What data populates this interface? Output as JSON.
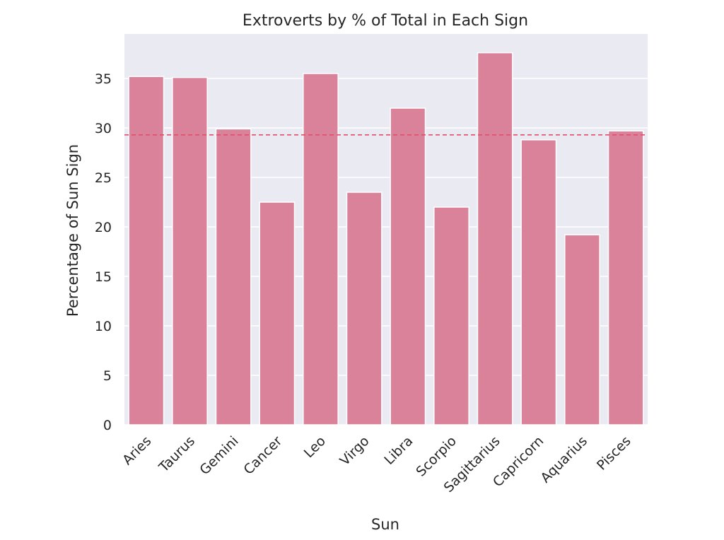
{
  "chart_data": {
    "type": "bar",
    "title": "Extroverts by % of Total in Each Sign",
    "xlabel": "Sun",
    "ylabel": "Percentage of Sun Sign",
    "categories": [
      "Aries",
      "Taurus",
      "Gemini",
      "Cancer",
      "Leo",
      "Virgo",
      "Libra",
      "Scorpio",
      "Sagittarius",
      "Capricorn",
      "Aquarius",
      "Pisces"
    ],
    "values": [
      35.2,
      35.1,
      29.9,
      22.5,
      35.5,
      23.5,
      32.0,
      22.0,
      37.6,
      28.8,
      19.2,
      29.7
    ],
    "reference_line": 29.3,
    "ylim": [
      0,
      39.5
    ],
    "yticks": [
      0,
      5,
      10,
      15,
      20,
      25,
      30,
      35
    ],
    "grid": true,
    "colors": {
      "bar": "#d98299",
      "reference_line": "#e0506e",
      "plot_background": "#eaeaf2",
      "grid": "#ffffff"
    }
  }
}
